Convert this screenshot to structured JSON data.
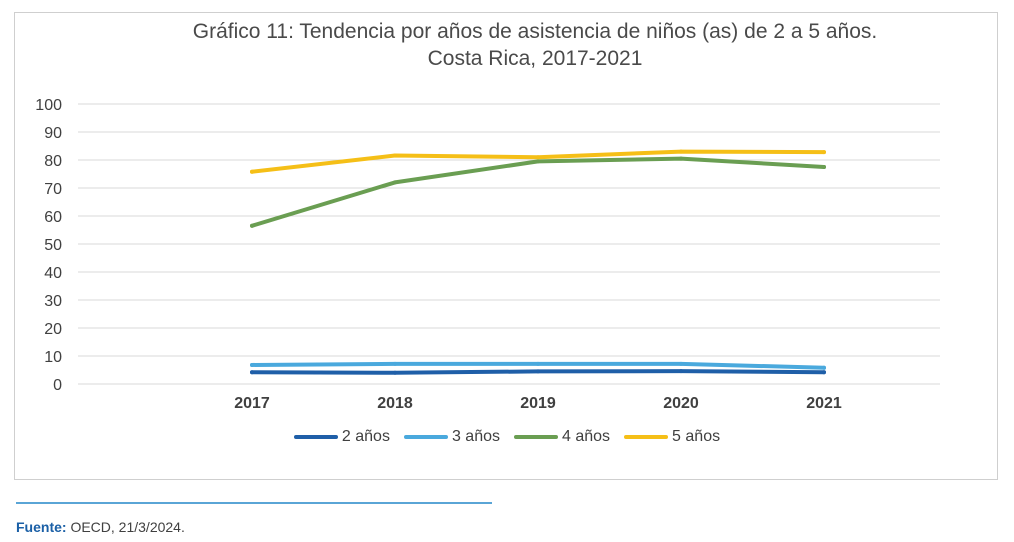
{
  "chart_data": {
    "type": "line",
    "title_line1": "Gráfico 11: Tendencia por años de asistencia de niños (as) de 2 a 5 años.",
    "title_line2": "Costa Rica, 2017-2021",
    "categories": [
      "2017",
      "2018",
      "2019",
      "2020",
      "2021"
    ],
    "y_ticks": [
      "100",
      "90",
      "80",
      "70",
      "60",
      "50",
      "40",
      "30",
      "20",
      "10",
      "0"
    ],
    "ylim": [
      0,
      100
    ],
    "grid": true,
    "legend_position": "bottom",
    "series": [
      {
        "name": "2 años",
        "color": "#1f5fa8",
        "values": [
          4.2,
          4.0,
          4.5,
          4.6,
          4.2
        ]
      },
      {
        "name": "3 años",
        "color": "#4aa9dd",
        "values": [
          6.8,
          7.2,
          7.2,
          7.2,
          5.8
        ]
      },
      {
        "name": "4 años",
        "color": "#6a9e52",
        "values": [
          56.5,
          72.0,
          79.5,
          80.5,
          77.5
        ]
      },
      {
        "name": "5 años",
        "color": "#f5bf17",
        "values": [
          75.8,
          81.6,
          81.0,
          83.0,
          82.8
        ]
      }
    ]
  },
  "footer": {
    "label": "Fuente:",
    "text": " OECD, 21/3/2024."
  }
}
